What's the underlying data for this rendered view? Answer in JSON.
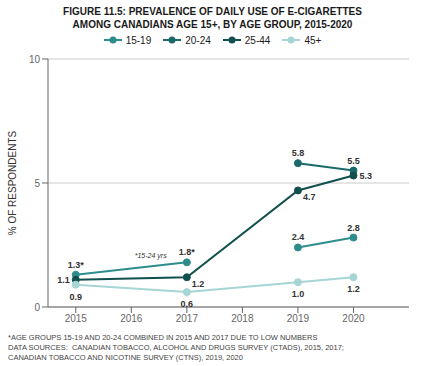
{
  "chart_data": {
    "type": "line",
    "title": "FIGURE 11.5: PREVALENCE OF DAILY USE OF E-CIGARETTES",
    "subtitle": "AMONG CANADIANS AGE 15+, BY AGE GROUP, 2015-2020",
    "ylabel": "% OF RESPONDENTS",
    "xlim": [
      2014.5,
      2021.0
    ],
    "xticks": [
      2015,
      2016,
      2017,
      2018,
      2019,
      2020
    ],
    "ylim": [
      0,
      10
    ],
    "yticks": [
      0,
      5,
      10
    ],
    "grid": "y",
    "legend": "top",
    "marker": "o",
    "line_style": "solid",
    "data_labels": true,
    "series": [
      {
        "color": "#2d8c8c",
        "x": [
          2015,
          2017
        ],
        "values": [
          1.3,
          1.8
        ],
        "value_labels": [
          "1.3*",
          "1.8*"
        ]
      },
      {
        "name": "15-19",
        "color": "#2d8c8c",
        "x": [
          2019,
          2020
        ],
        "values": [
          2.4,
          2.8
        ]
      },
      {
        "name": "20-24",
        "color": "#1a6a6a",
        "x": [
          2019,
          2020
        ],
        "values": [
          5.8,
          5.5
        ]
      },
      {
        "name": "25-44",
        "color": "#124f4f",
        "x": [
          2015,
          2017,
          2019,
          2020
        ],
        "values": [
          1.1,
          1.2,
          4.7,
          5.3
        ]
      },
      {
        "name": "45+",
        "color": "#a5d5d5",
        "x": [
          2015,
          2017,
          2019,
          2020
        ],
        "values": [
          0.9,
          0.6,
          1.0,
          1.2
        ],
        "value_labels": [
          "0.9",
          "0.6",
          "1.0",
          "1.2"
        ]
      }
    ],
    "annotations": [
      {
        "text": "*15-24 yrs",
        "x": 2016.08,
        "y": 1.62
      }
    ],
    "footnotes": [
      "*AGE GROUPS 15-19 AND 20-24 COMBINED IN 2015 AND 2017 DUE TO LOW NUMBERS",
      "DATA SOURCES:  CANADIAN TOBACCO, ALCOHOL AND DRUGS SURVEY (CTADS), 2015, 2017;",
      "CANADIAN TOBACCO AND NICOTINE SURVEY (CTNS), 2019, 2020"
    ]
  }
}
